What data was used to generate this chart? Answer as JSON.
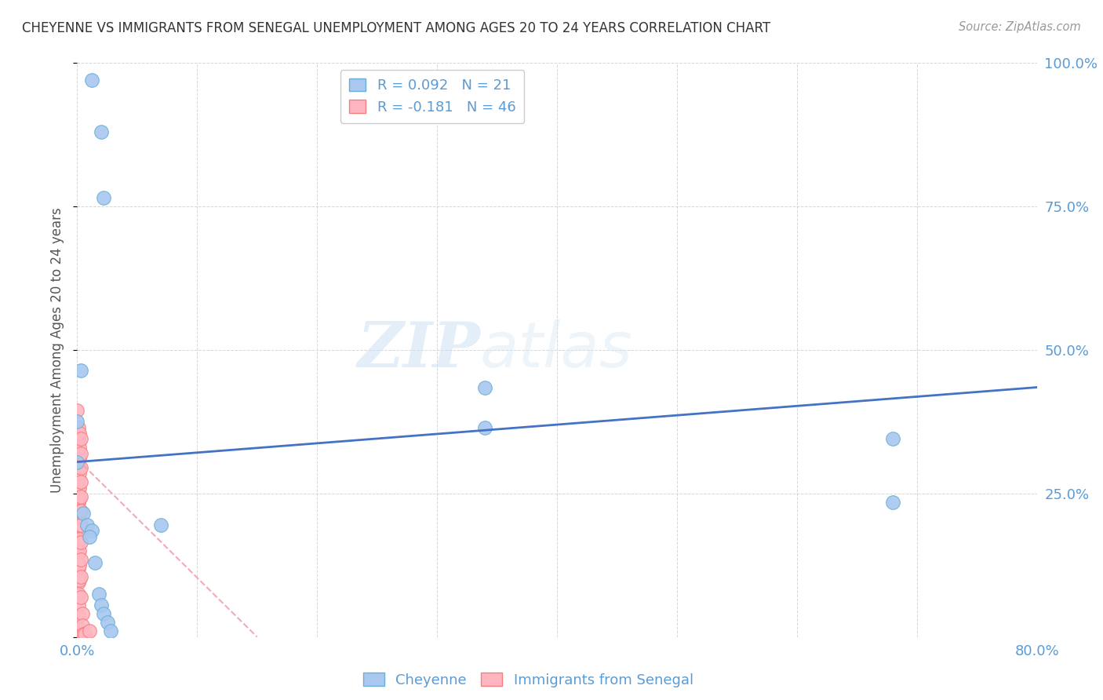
{
  "title": "CHEYENNE VS IMMIGRANTS FROM SENEGAL UNEMPLOYMENT AMONG AGES 20 TO 24 YEARS CORRELATION CHART",
  "source": "Source: ZipAtlas.com",
  "ylabel": "Unemployment Among Ages 20 to 24 years",
  "xlim": [
    0.0,
    0.8
  ],
  "ylim": [
    0.0,
    1.0
  ],
  "xticks": [
    0.0,
    0.1,
    0.2,
    0.3,
    0.4,
    0.5,
    0.6,
    0.7,
    0.8
  ],
  "xticklabels": [
    "0.0%",
    "",
    "",
    "",
    "",
    "",
    "",
    "",
    "80.0%"
  ],
  "yticks": [
    0.0,
    0.25,
    0.5,
    0.75,
    1.0
  ],
  "yticklabels": [
    "",
    "25.0%",
    "50.0%",
    "75.0%",
    "100.0%"
  ],
  "cheyenne_R": 0.092,
  "cheyenne_N": 21,
  "senegal_R": -0.181,
  "senegal_N": 46,
  "cheyenne_color": "#a8c8f0",
  "cheyenne_edge_color": "#6baed6",
  "senegal_color": "#ffb6c1",
  "senegal_edge_color": "#f08080",
  "trend_blue": "#4472c4",
  "trend_pink": "#f4a0b0",
  "watermark_zip": "ZIP",
  "watermark_atlas": "atlas",
  "cheyenne_points": [
    [
      0.012,
      0.97
    ],
    [
      0.02,
      0.88
    ],
    [
      0.022,
      0.765
    ],
    [
      0.003,
      0.465
    ],
    [
      0.0,
      0.375
    ],
    [
      0.0,
      0.305
    ],
    [
      0.34,
      0.435
    ],
    [
      0.34,
      0.365
    ],
    [
      0.68,
      0.345
    ],
    [
      0.68,
      0.235
    ],
    [
      0.005,
      0.215
    ],
    [
      0.008,
      0.195
    ],
    [
      0.012,
      0.185
    ],
    [
      0.01,
      0.175
    ],
    [
      0.07,
      0.195
    ],
    [
      0.015,
      0.13
    ],
    [
      0.018,
      0.075
    ],
    [
      0.02,
      0.055
    ],
    [
      0.022,
      0.04
    ],
    [
      0.025,
      0.025
    ],
    [
      0.028,
      0.01
    ]
  ],
  "senegal_points": [
    [
      0.0,
      0.395
    ],
    [
      0.001,
      0.365
    ],
    [
      0.001,
      0.345
    ],
    [
      0.001,
      0.32
    ],
    [
      0.001,
      0.295
    ],
    [
      0.001,
      0.275
    ],
    [
      0.001,
      0.255
    ],
    [
      0.001,
      0.235
    ],
    [
      0.001,
      0.21
    ],
    [
      0.001,
      0.185
    ],
    [
      0.001,
      0.165
    ],
    [
      0.001,
      0.145
    ],
    [
      0.001,
      0.12
    ],
    [
      0.001,
      0.095
    ],
    [
      0.001,
      0.075
    ],
    [
      0.001,
      0.055
    ],
    [
      0.001,
      0.035
    ],
    [
      0.001,
      0.015
    ],
    [
      0.002,
      0.355
    ],
    [
      0.002,
      0.33
    ],
    [
      0.002,
      0.31
    ],
    [
      0.002,
      0.285
    ],
    [
      0.002,
      0.26
    ],
    [
      0.002,
      0.24
    ],
    [
      0.002,
      0.22
    ],
    [
      0.002,
      0.195
    ],
    [
      0.002,
      0.17
    ],
    [
      0.002,
      0.15
    ],
    [
      0.002,
      0.125
    ],
    [
      0.002,
      0.1
    ],
    [
      0.003,
      0.345
    ],
    [
      0.003,
      0.32
    ],
    [
      0.003,
      0.295
    ],
    [
      0.003,
      0.27
    ],
    [
      0.003,
      0.245
    ],
    [
      0.003,
      0.22
    ],
    [
      0.003,
      0.195
    ],
    [
      0.003,
      0.165
    ],
    [
      0.003,
      0.135
    ],
    [
      0.003,
      0.105
    ],
    [
      0.003,
      0.07
    ],
    [
      0.004,
      0.04
    ],
    [
      0.004,
      0.02
    ],
    [
      0.005,
      0.005
    ],
    [
      0.006,
      0.005
    ],
    [
      0.01,
      0.01
    ]
  ],
  "cheyenne_trend_x": [
    0.0,
    0.8
  ],
  "cheyenne_trend_y": [
    0.305,
    0.435
  ],
  "senegal_trend_x": [
    0.0,
    0.15
  ],
  "senegal_trend_y": [
    0.31,
    0.0
  ]
}
